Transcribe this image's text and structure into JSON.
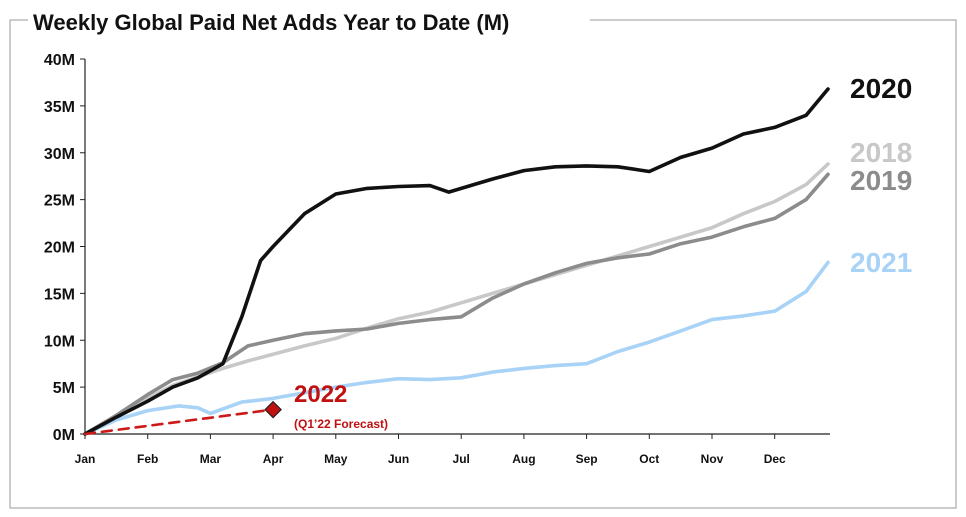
{
  "chart_data": {
    "type": "line",
    "title": "Weekly Global Paid Net Adds Year to Date (M)",
    "xlabel": "",
    "ylabel": "",
    "ylim": [
      0,
      40
    ],
    "yticks": [
      "0M",
      "5M",
      "10M",
      "15M",
      "20M",
      "25M",
      "30M",
      "35M",
      "40M"
    ],
    "x_ticks": [
      "Jan",
      "Feb",
      "Mar",
      "Apr",
      "May",
      "Jun",
      "Jul",
      "Aug",
      "Sep",
      "Oct",
      "Nov",
      "Dec"
    ],
    "x_unit": "month",
    "grid": false,
    "series": [
      {
        "name": "2018",
        "color": "#c8c8c8",
        "style": "solid",
        "points": [
          [
            0,
            0
          ],
          [
            0.5,
            1.8
          ],
          [
            1,
            3.8
          ],
          [
            1.4,
            5.2
          ],
          [
            1.8,
            6.1
          ],
          [
            2.2,
            7.0
          ],
          [
            2.6,
            7.8
          ],
          [
            3,
            8.5
          ],
          [
            3.5,
            9.4
          ],
          [
            4,
            10.2
          ],
          [
            4.5,
            11.3
          ],
          [
            5,
            12.3
          ],
          [
            5.5,
            13.0
          ],
          [
            6,
            14.0
          ],
          [
            6.5,
            15.0
          ],
          [
            7,
            16.0
          ],
          [
            7.5,
            17.0
          ],
          [
            8,
            18.0
          ],
          [
            8.5,
            19.0
          ],
          [
            9,
            20.0
          ],
          [
            9.5,
            21.0
          ],
          [
            10,
            22.0
          ],
          [
            10.5,
            23.5
          ],
          [
            11,
            24.8
          ],
          [
            11.5,
            26.6
          ],
          [
            11.85,
            28.8
          ]
        ]
      },
      {
        "name": "2019",
        "color": "#8c8c8c",
        "style": "solid",
        "points": [
          [
            0,
            0
          ],
          [
            0.5,
            2.0
          ],
          [
            1,
            4.2
          ],
          [
            1.4,
            5.8
          ],
          [
            1.8,
            6.5
          ],
          [
            2.2,
            7.6
          ],
          [
            2.6,
            9.4
          ],
          [
            3,
            10.0
          ],
          [
            3.5,
            10.7
          ],
          [
            4,
            11.0
          ],
          [
            4.5,
            11.2
          ],
          [
            5,
            11.8
          ],
          [
            5.5,
            12.2
          ],
          [
            6,
            12.5
          ],
          [
            6.5,
            14.5
          ],
          [
            7,
            16.0
          ],
          [
            7.5,
            17.2
          ],
          [
            8,
            18.2
          ],
          [
            8.5,
            18.8
          ],
          [
            9,
            19.2
          ],
          [
            9.5,
            20.3
          ],
          [
            10,
            21.0
          ],
          [
            10.5,
            22.1
          ],
          [
            11,
            23.0
          ],
          [
            11.5,
            25.0
          ],
          [
            11.85,
            27.7
          ]
        ]
      },
      {
        "name": "2020",
        "color": "#111111",
        "style": "solid",
        "points": [
          [
            0,
            0
          ],
          [
            0.5,
            1.8
          ],
          [
            1,
            3.5
          ],
          [
            1.4,
            5.0
          ],
          [
            1.8,
            6.0
          ],
          [
            2.2,
            7.5
          ],
          [
            2.5,
            12.5
          ],
          [
            2.8,
            18.5
          ],
          [
            3,
            20.0
          ],
          [
            3.5,
            23.5
          ],
          [
            4,
            25.6
          ],
          [
            4.5,
            26.2
          ],
          [
            5,
            26.4
          ],
          [
            5.5,
            26.5
          ],
          [
            5.8,
            25.8
          ],
          [
            6,
            26.2
          ],
          [
            6.5,
            27.2
          ],
          [
            7,
            28.1
          ],
          [
            7.5,
            28.5
          ],
          [
            8,
            28.6
          ],
          [
            8.5,
            28.5
          ],
          [
            8.8,
            28.2
          ],
          [
            9,
            28.0
          ],
          [
            9.5,
            29.5
          ],
          [
            10,
            30.5
          ],
          [
            10.5,
            32.0
          ],
          [
            11,
            32.7
          ],
          [
            11.5,
            34.0
          ],
          [
            11.85,
            36.8
          ]
        ]
      },
      {
        "name": "2021",
        "color": "#a8d3f7",
        "style": "solid",
        "points": [
          [
            0,
            0
          ],
          [
            0.5,
            1.5
          ],
          [
            1,
            2.5
          ],
          [
            1.5,
            3.0
          ],
          [
            1.8,
            2.8
          ],
          [
            2,
            2.2
          ],
          [
            2.5,
            3.4
          ],
          [
            3,
            3.8
          ],
          [
            3.5,
            4.4
          ],
          [
            4,
            5.0
          ],
          [
            4.5,
            5.5
          ],
          [
            5,
            5.9
          ],
          [
            5.5,
            5.8
          ],
          [
            6,
            6.0
          ],
          [
            6.5,
            6.6
          ],
          [
            7,
            7.0
          ],
          [
            7.5,
            7.3
          ],
          [
            8,
            7.5
          ],
          [
            8.5,
            8.8
          ],
          [
            9,
            9.8
          ],
          [
            9.5,
            11.0
          ],
          [
            10,
            12.2
          ],
          [
            10.5,
            12.6
          ],
          [
            11,
            13.1
          ],
          [
            11.5,
            15.2
          ],
          [
            11.85,
            18.3
          ]
        ]
      },
      {
        "name": "2022",
        "color": "#cc1a1a",
        "style": "dashed",
        "points": [
          [
            0,
            0
          ],
          [
            3,
            2.6
          ]
        ]
      }
    ],
    "forecast_point": {
      "series": "2022",
      "x": 3,
      "y": 2.6,
      "marker": "diamond",
      "color": "#c01010",
      "label": "2022",
      "sublabel": "(Q1’22 Forecast)"
    }
  }
}
